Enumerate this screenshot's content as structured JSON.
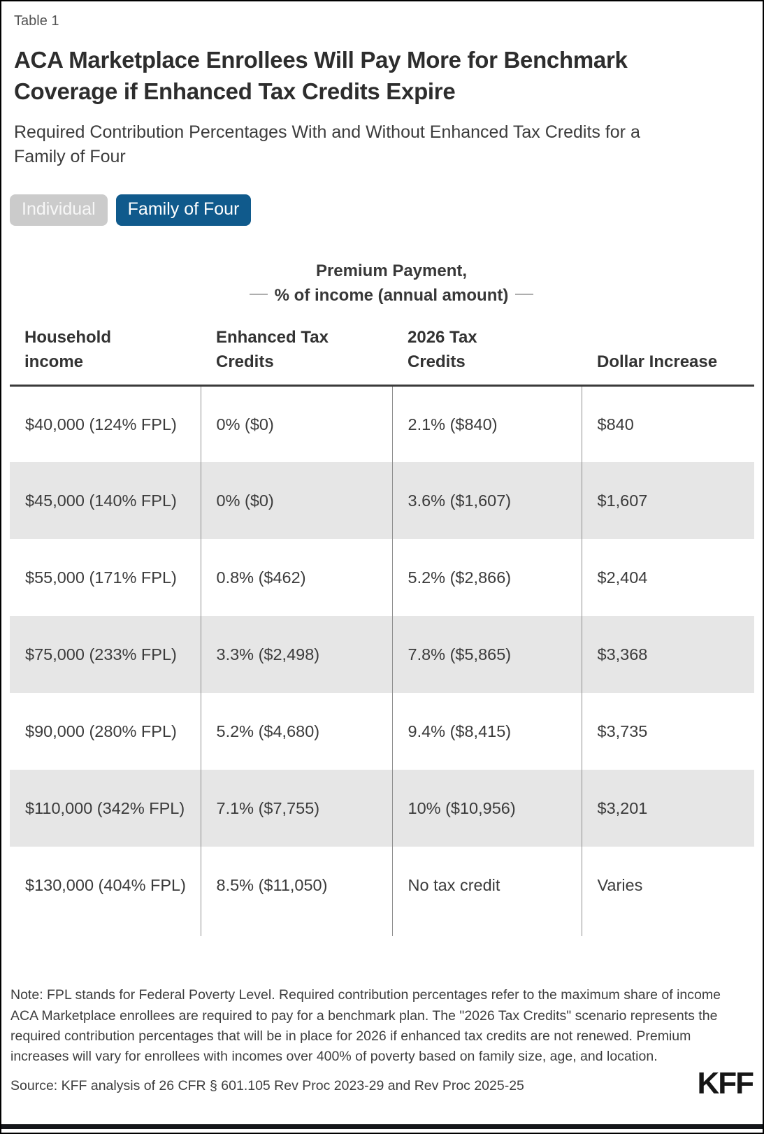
{
  "meta": {
    "table_label": "Table 1"
  },
  "header": {
    "title": "ACA Marketplace Enrollees Will Pay More for Benchmark Coverage if Enhanced Tax Credits Expire",
    "subtitle": "Required Contribution Percentages With and Without Enhanced Tax Credits for a Family of Four"
  },
  "toggles": {
    "individual_label": "Individual",
    "family_label": "Family of Four",
    "active_option": "Family of Four",
    "active_bg": "#105a8c",
    "inactive_bg": "#cbcbcb"
  },
  "table": {
    "spanner_line1": "Premium Payment,",
    "spanner_line2": "% of income (annual amount)",
    "columns": [
      "Household income",
      "Enhanced Tax Credits",
      "2026 Tax Credits",
      "Dollar Increase"
    ],
    "zebra_color": "#e6e6e6",
    "rows": [
      {
        "income": "$40,000 (124% FPL)",
        "enhanced": "0% ($0)",
        "credits2026": "2.1% ($840)",
        "increase": "$840"
      },
      {
        "income": "$45,000 (140% FPL)",
        "enhanced": "0% ($0)",
        "credits2026": "3.6% ($1,607)",
        "increase": "$1,607"
      },
      {
        "income": "$55,000 (171% FPL)",
        "enhanced": "0.8% ($462)",
        "credits2026": "5.2% ($2,866)",
        "increase": "$2,404"
      },
      {
        "income": "$75,000 (233% FPL)",
        "enhanced": "3.3% ($2,498)",
        "credits2026": "7.8% ($5,865)",
        "increase": "$3,368"
      },
      {
        "income": "$90,000 (280% FPL)",
        "enhanced": "5.2% ($4,680)",
        "credits2026": "9.4% ($8,415)",
        "increase": "$3,735"
      },
      {
        "income": "$110,000 (342% FPL)",
        "enhanced": "7.1% ($7,755)",
        "credits2026": "10% ($10,956)",
        "increase": "$3,201"
      },
      {
        "income": "$130,000 (404% FPL)",
        "enhanced": "8.5% ($11,050)",
        "credits2026": "No tax credit",
        "increase": "Varies"
      }
    ]
  },
  "footer": {
    "note": "Note: FPL stands for Federal Poverty Level. Required contribution percentages refer to the maximum share of income ACA Marketplace enrollees are required to pay for a benchmark plan. The \"2026 Tax Credits\" scenario represents the required contribution percentages that will be in place for 2026 if enhanced tax credits are not renewed. Premium increases will vary for enrollees with incomes over 400% of poverty based on family size, age, and location.",
    "source": "Source: KFF analysis of 26 CFR § 601.105 Rev Proc 2023-29 and Rev Proc 2025-25",
    "logo": "KFF"
  },
  "chart_data": {
    "type": "table",
    "title": "ACA Marketplace Enrollees Will Pay More for Benchmark Coverage if Enhanced Tax Credits Expire",
    "subtitle": "Required Contribution Percentages With and Without Enhanced Tax Credits for a Family of Four",
    "group_header": "Premium Payment, % of income (annual amount)",
    "columns": [
      "Household income",
      "Enhanced Tax Credits",
      "2026 Tax Credits",
      "Dollar Increase"
    ],
    "rows": [
      [
        "$40,000 (124% FPL)",
        "0% ($0)",
        "2.1% ($840)",
        "$840"
      ],
      [
        "$45,000 (140% FPL)",
        "0% ($0)",
        "3.6% ($1,607)",
        "$1,607"
      ],
      [
        "$55,000 (171% FPL)",
        "0.8% ($462)",
        "5.2% ($2,866)",
        "$2,404"
      ],
      [
        "$75,000 (233% FPL)",
        "3.3% ($2,498)",
        "7.8% ($5,865)",
        "$3,368"
      ],
      [
        "$90,000 (280% FPL)",
        "5.2% ($4,680)",
        "9.4% ($8,415)",
        "$3,735"
      ],
      [
        "$110,000 (342% FPL)",
        "7.1% ($7,755)",
        "10% ($10,956)",
        "$3,201"
      ],
      [
        "$130,000 (404% FPL)",
        "8.5% ($11,050)",
        "No tax credit",
        "Varies"
      ]
    ]
  }
}
